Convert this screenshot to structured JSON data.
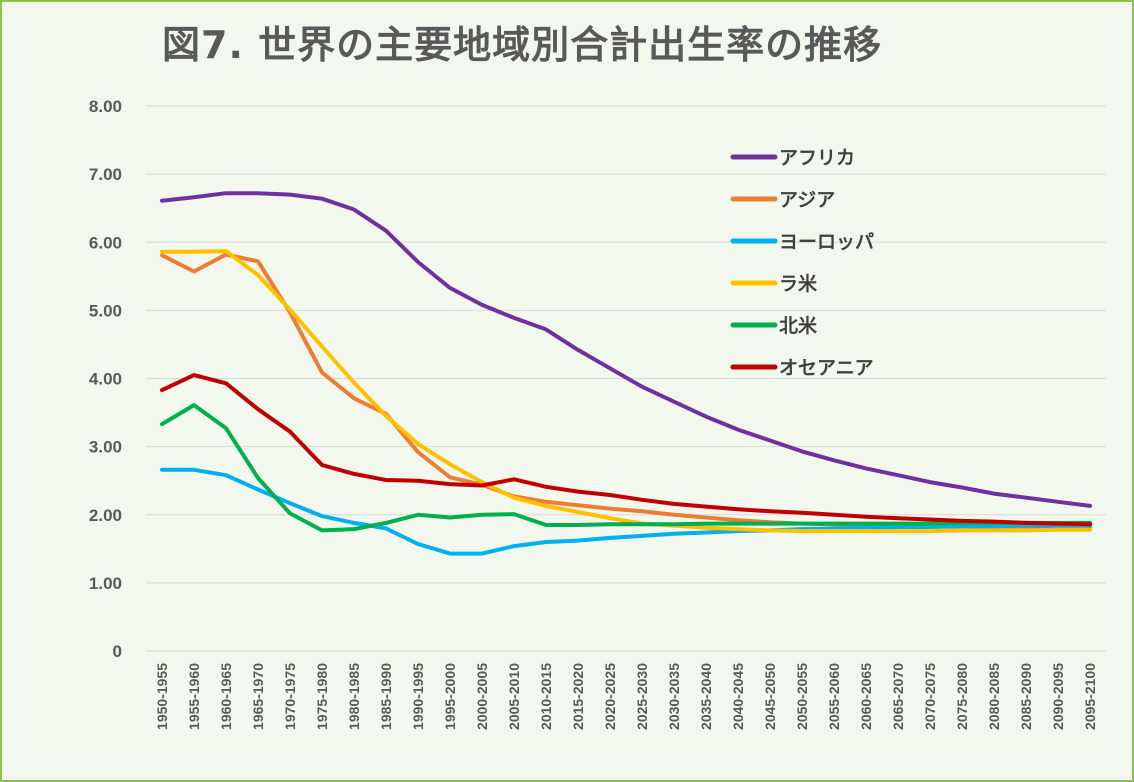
{
  "chart_data": {
    "type": "line",
    "title": "図7. 世界の主要地域別合計出生率の推移",
    "xlabel": "",
    "ylabel": "",
    "ylim": [
      0,
      8
    ],
    "yticks": [
      "0",
      "1.00",
      "2.00",
      "3.00",
      "4.00",
      "5.00",
      "6.00",
      "7.00",
      "8.00"
    ],
    "grid": true,
    "legend_position": "top-right",
    "categories": [
      "1950-1955",
      "1955-1960",
      "1960-1965",
      "1965-1970",
      "1970-1975",
      "1975-1980",
      "1980-1985",
      "1985-1990",
      "1990-1995",
      "1995-2000",
      "2000-2005",
      "2005-2010",
      "2010-2015",
      "2015-2020",
      "2020-2025",
      "2025-2030",
      "2030-2035",
      "2035-2040",
      "2040-2045",
      "2045-2050",
      "2050-2055",
      "2055-2060",
      "2060-2065",
      "2065-2070",
      "2070-2075",
      "2075-2080",
      "2080-2085",
      "2085-2090",
      "2090-2095",
      "2095-2100"
    ],
    "series": [
      {
        "name": "アフリカ",
        "color": "#7030a0",
        "values": [
          6.61,
          6.66,
          6.72,
          6.72,
          6.7,
          6.64,
          6.48,
          6.17,
          5.71,
          5.33,
          5.08,
          4.89,
          4.72,
          4.42,
          4.15,
          3.88,
          3.66,
          3.44,
          3.25,
          3.09,
          2.93,
          2.8,
          2.68,
          2.58,
          2.48,
          2.4,
          2.31,
          2.25,
          2.19,
          2.13
        ]
      },
      {
        "name": "アジア",
        "color": "#ed7d31",
        "values": [
          5.81,
          5.57,
          5.82,
          5.72,
          4.97,
          4.09,
          3.71,
          3.48,
          2.92,
          2.55,
          2.44,
          2.27,
          2.19,
          2.14,
          2.09,
          2.05,
          2.0,
          1.96,
          1.92,
          1.89,
          1.87,
          1.86,
          1.85,
          1.84,
          1.83,
          1.83,
          1.82,
          1.82,
          1.82,
          1.82
        ]
      },
      {
        "name": "ヨーロッパ",
        "color": "#00b0f0",
        "values": [
          2.66,
          2.66,
          2.58,
          2.37,
          2.17,
          1.98,
          1.88,
          1.8,
          1.57,
          1.43,
          1.43,
          1.54,
          1.6,
          1.62,
          1.66,
          1.69,
          1.72,
          1.74,
          1.76,
          1.77,
          1.79,
          1.8,
          1.81,
          1.82,
          1.82,
          1.83,
          1.83,
          1.84,
          1.84,
          1.84
        ]
      },
      {
        "name": "ラ米",
        "color": "#ffc000",
        "values": [
          5.86,
          5.86,
          5.87,
          5.52,
          5.01,
          4.47,
          3.94,
          3.45,
          3.04,
          2.74,
          2.48,
          2.25,
          2.13,
          2.04,
          1.95,
          1.87,
          1.84,
          1.81,
          1.79,
          1.77,
          1.76,
          1.76,
          1.76,
          1.76,
          1.76,
          1.77,
          1.77,
          1.77,
          1.78,
          1.78
        ]
      },
      {
        "name": "北米",
        "color": "#00b050",
        "values": [
          3.33,
          3.61,
          3.27,
          2.54,
          2.02,
          1.77,
          1.79,
          1.88,
          2.0,
          1.96,
          2.0,
          2.01,
          1.85,
          1.85,
          1.86,
          1.86,
          1.86,
          1.87,
          1.87,
          1.87,
          1.87,
          1.87,
          1.87,
          1.87,
          1.87,
          1.88,
          1.88,
          1.88,
          1.88,
          1.88
        ]
      },
      {
        "name": "オセアニア",
        "color": "#c00000",
        "values": [
          3.83,
          4.05,
          3.93,
          3.55,
          3.22,
          2.73,
          2.6,
          2.51,
          2.5,
          2.45,
          2.43,
          2.52,
          2.41,
          2.34,
          2.29,
          2.22,
          2.16,
          2.12,
          2.08,
          2.05,
          2.03,
          2.0,
          1.97,
          1.95,
          1.93,
          1.91,
          1.9,
          1.88,
          1.87,
          1.86
        ]
      }
    ]
  }
}
